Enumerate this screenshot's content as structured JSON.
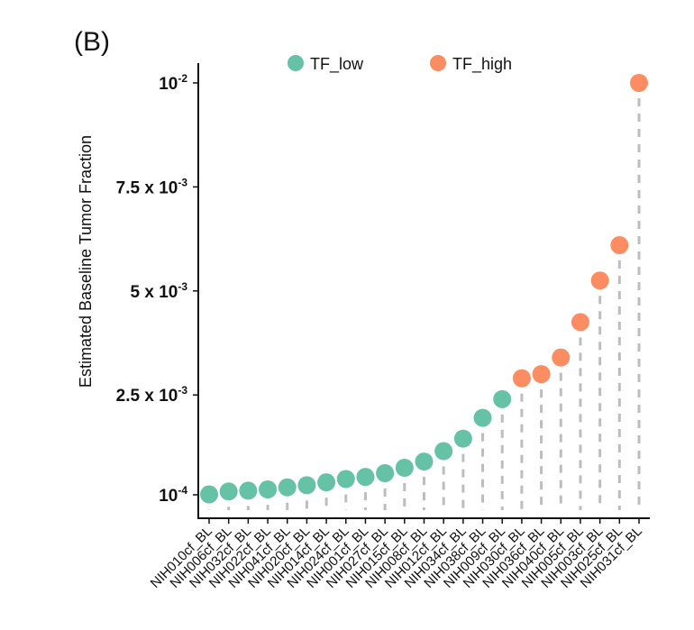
{
  "panel_label": "(B)",
  "chart_data": {
    "type": "scatter",
    "subtype": "lollipop",
    "title": "",
    "xlabel": "",
    "ylabel": "Estimated Baseline Tumor Fraction",
    "ylim": [
      0.0001,
      0.01
    ],
    "yticks": [
      {
        "value": 0.0001,
        "base": "10",
        "exp": "-4",
        "prefix": ""
      },
      {
        "value": 0.0025,
        "base": "10",
        "exp": "-3",
        "prefix": "2.5 x "
      },
      {
        "value": 0.005,
        "base": "10",
        "exp": "-3",
        "prefix": "5 x "
      },
      {
        "value": 0.0075,
        "base": "10",
        "exp": "-3",
        "prefix": "7.5 x "
      },
      {
        "value": 0.01,
        "base": "10",
        "exp": "-2",
        "prefix": ""
      }
    ],
    "legend": {
      "position": "top",
      "entries": [
        {
          "name": "TF_low",
          "color": "#66C2A5"
        },
        {
          "name": "TF_high",
          "color": "#FC8D62"
        }
      ]
    },
    "categories": [
      "NIH010cf_BL",
      "NIH006cf_BL",
      "NIH032cf_BL",
      "NIH022cf_BL",
      "NIH041cf_BL",
      "NIH020cf_BL",
      "NIH014cf_BL",
      "NIH024cf_BL",
      "NIH001cf_BL",
      "NIH027cf_BL",
      "NIH015cf_BL",
      "NIH008cf_BL",
      "NIH012cf_BL",
      "NIH034cf_BL",
      "NIH038cf_BL",
      "NIH009cf_BL",
      "NIH030cf_BL",
      "NIH036cf_BL",
      "NIH040cf_BL",
      "NIH005cf_BL",
      "NIH003cf_BL",
      "NIH025cf_BL",
      "NIH031cf_BL"
    ],
    "values": [
      0.00011,
      0.00018,
      0.0002,
      0.00023,
      0.00028,
      0.00033,
      0.0004,
      0.00048,
      0.00053,
      0.00062,
      0.00075,
      0.0009,
      0.00115,
      0.00145,
      0.00195,
      0.0024,
      0.0029,
      0.003,
      0.0034,
      0.00425,
      0.00525,
      0.0061,
      0.01
    ],
    "groups": [
      "TF_low",
      "TF_low",
      "TF_low",
      "TF_low",
      "TF_low",
      "TF_low",
      "TF_low",
      "TF_low",
      "TF_low",
      "TF_low",
      "TF_low",
      "TF_low",
      "TF_low",
      "TF_low",
      "TF_low",
      "TF_low",
      "TF_high",
      "TF_high",
      "TF_high",
      "TF_high",
      "TF_high",
      "TF_high",
      "TF_high"
    ],
    "stem_color": "#BDBDBD",
    "grid": false
  }
}
